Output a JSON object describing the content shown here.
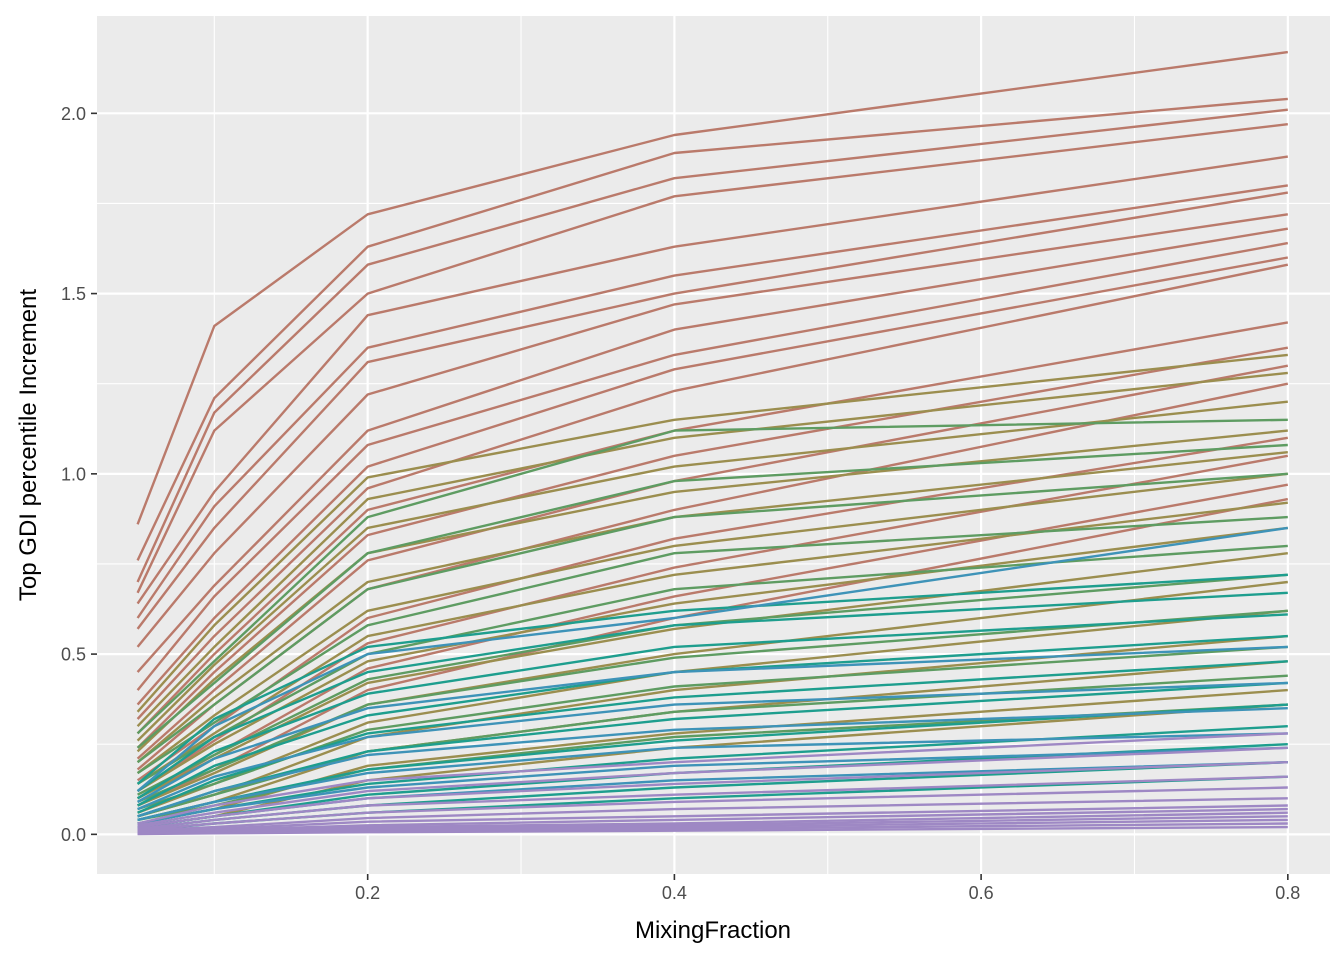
{
  "chart_data": {
    "type": "line",
    "title": "",
    "xlabel": "MixingFraction",
    "ylabel": "Top GDI percentile Increment",
    "xlim": [
      0.0235,
      0.8275
    ],
    "ylim": [
      -0.11,
      2.27
    ],
    "grid": true,
    "legend": "none",
    "x_ticks": [
      0.2,
      0.4,
      0.6,
      0.8
    ],
    "x_tick_labels": [
      "0.2",
      "0.4",
      "0.6",
      "0.8"
    ],
    "y_ticks": [
      0.0,
      0.5,
      1.0,
      1.5,
      2.0
    ],
    "y_tick_labels": [
      "0.0",
      "0.5",
      "1.0",
      "1.5",
      "2.0"
    ],
    "x": [
      0.05,
      0.1,
      0.2,
      0.4,
      0.8
    ],
    "groups": [
      {
        "color": "#BA7A6B",
        "lines": [
          {
            "values": [
              0.86,
              1.41,
              1.72,
              1.94,
              2.17
            ]
          },
          {
            "values": [
              0.76,
              1.21,
              1.63,
              1.89,
              2.04
            ]
          },
          {
            "values": [
              0.7,
              1.17,
              1.58,
              1.82,
              2.01
            ]
          },
          {
            "values": [
              0.67,
              1.12,
              1.5,
              1.77,
              1.97
            ]
          },
          {
            "values": [
              0.64,
              0.95,
              1.44,
              1.63,
              1.88
            ]
          },
          {
            "values": [
              0.6,
              0.91,
              1.35,
              1.55,
              1.8
            ]
          },
          {
            "values": [
              0.57,
              0.85,
              1.31,
              1.5,
              1.78
            ]
          },
          {
            "values": [
              0.52,
              0.78,
              1.22,
              1.47,
              1.72
            ]
          },
          {
            "values": [
              0.45,
              0.69,
              1.12,
              1.4,
              1.68
            ]
          },
          {
            "values": [
              0.4,
              0.66,
              1.08,
              1.33,
              1.64
            ]
          },
          {
            "values": [
              0.36,
              0.6,
              1.02,
              1.29,
              1.6
            ]
          },
          {
            "values": [
              0.32,
              0.55,
              0.96,
              1.23,
              1.58
            ]
          },
          {
            "values": [
              0.28,
              0.5,
              0.9,
              1.12,
              1.42
            ]
          },
          {
            "values": [
              0.24,
              0.45,
              0.83,
              1.05,
              1.35
            ]
          },
          {
            "values": [
              0.21,
              0.4,
              0.76,
              0.98,
              1.3
            ]
          },
          {
            "values": [
              0.18,
              0.36,
              0.68,
              0.9,
              1.25
            ]
          },
          {
            "values": [
              0.15,
              0.3,
              0.6,
              0.82,
              1.1
            ]
          },
          {
            "values": [
              0.12,
              0.26,
              0.53,
              0.74,
              1.05
            ]
          },
          {
            "values": [
              0.1,
              0.22,
              0.46,
              0.66,
              0.97
            ]
          },
          {
            "values": [
              0.08,
              0.18,
              0.4,
              0.6,
              0.93
            ]
          }
        ]
      },
      {
        "color": "#9B8E4F",
        "lines": [
          {
            "values": [
              0.34,
              0.58,
              0.99,
              1.15,
              1.33
            ]
          },
          {
            "values": [
              0.3,
              0.52,
              0.93,
              1.1,
              1.28
            ]
          },
          {
            "values": [
              0.26,
              0.47,
              0.85,
              1.02,
              1.2
            ]
          },
          {
            "values": [
              0.23,
              0.43,
              0.78,
              0.95,
              1.12
            ]
          },
          {
            "values": [
              0.2,
              0.38,
              0.7,
              0.88,
              1.06
            ]
          },
          {
            "values": [
              0.17,
              0.33,
              0.62,
              0.8,
              1.0
            ]
          },
          {
            "values": [
              0.14,
              0.28,
              0.55,
              0.72,
              0.92
            ]
          },
          {
            "values": [
              0.12,
              0.25,
              0.48,
              0.64,
              0.85
            ]
          },
          {
            "values": [
              0.1,
              0.21,
              0.42,
              0.57,
              0.78
            ]
          },
          {
            "values": [
              0.08,
              0.17,
              0.36,
              0.5,
              0.7
            ]
          },
          {
            "values": [
              0.06,
              0.14,
              0.31,
              0.45,
              0.62
            ]
          },
          {
            "values": [
              0.05,
              0.11,
              0.27,
              0.4,
              0.55
            ]
          },
          {
            "values": [
              0.04,
              0.09,
              0.23,
              0.34,
              0.48
            ]
          },
          {
            "values": [
              0.03,
              0.07,
              0.19,
              0.28,
              0.4
            ]
          },
          {
            "values": [
              0.02,
              0.05,
              0.15,
              0.24,
              0.36
            ]
          }
        ]
      },
      {
        "color": "#5E9C62",
        "lines": [
          {
            "values": [
              0.28,
              0.48,
              0.88,
              1.12,
              1.15
            ]
          },
          {
            "values": [
              0.24,
              0.42,
              0.78,
              0.98,
              1.08
            ]
          },
          {
            "values": [
              0.2,
              0.36,
              0.68,
              0.88,
              1.0
            ]
          },
          {
            "values": [
              0.17,
              0.31,
              0.58,
              0.78,
              0.88
            ]
          },
          {
            "values": [
              0.14,
              0.27,
              0.5,
              0.68,
              0.8
            ]
          },
          {
            "values": [
              0.11,
              0.22,
              0.43,
              0.58,
              0.72
            ]
          },
          {
            "values": [
              0.09,
              0.18,
              0.36,
              0.49,
              0.62
            ]
          },
          {
            "values": [
              0.07,
              0.14,
              0.29,
              0.41,
              0.52
            ]
          },
          {
            "values": [
              0.05,
              0.11,
              0.23,
              0.34,
              0.44
            ]
          },
          {
            "values": [
              0.04,
              0.08,
              0.18,
              0.27,
              0.36
            ]
          }
        ]
      },
      {
        "color": "#1E9E8E",
        "lines": [
          {
            "values": [
              0.14,
              0.32,
              0.52,
              0.62,
              0.72
            ]
          },
          {
            "values": [
              0.12,
              0.27,
              0.45,
              0.58,
              0.67
            ]
          },
          {
            "values": [
              0.1,
              0.23,
              0.39,
              0.52,
              0.61
            ]
          },
          {
            "values": [
              0.08,
              0.19,
              0.33,
              0.45,
              0.55
            ]
          },
          {
            "values": [
              0.06,
              0.15,
              0.28,
              0.38,
              0.48
            ]
          },
          {
            "values": [
              0.05,
              0.12,
              0.23,
              0.32,
              0.42
            ]
          },
          {
            "values": [
              0.04,
              0.09,
              0.18,
              0.26,
              0.36
            ]
          },
          {
            "values": [
              0.03,
              0.07,
              0.14,
              0.21,
              0.3
            ]
          },
          {
            "values": [
              0.02,
              0.05,
              0.11,
              0.17,
              0.25
            ]
          },
          {
            "values": [
              0.015,
              0.04,
              0.08,
              0.13,
              0.2
            ]
          },
          {
            "values": [
              0.01,
              0.03,
              0.06,
              0.1,
              0.16
            ]
          }
        ]
      },
      {
        "color": "#3E93B8",
        "lines": [
          {
            "values": [
              0.12,
              0.3,
              0.5,
              0.6,
              0.85
            ]
          },
          {
            "values": [
              0.09,
              0.21,
              0.35,
              0.45,
              0.52
            ]
          },
          {
            "values": [
              0.07,
              0.16,
              0.27,
              0.36,
              0.42
            ]
          },
          {
            "values": [
              0.05,
              0.12,
              0.22,
              0.29,
              0.35
            ]
          },
          {
            "values": [
              0.04,
              0.09,
              0.17,
              0.24,
              0.28
            ]
          },
          {
            "values": [
              0.03,
              0.07,
              0.13,
              0.19,
              0.24
            ]
          },
          {
            "values": [
              0.02,
              0.05,
              0.1,
              0.15,
              0.2
            ]
          }
        ]
      },
      {
        "color": "#9E88C4",
        "lines": [
          {
            "values": [
              0.03,
              0.08,
              0.15,
              0.2,
              0.28
            ]
          },
          {
            "values": [
              0.025,
              0.06,
              0.12,
              0.17,
              0.24
            ]
          },
          {
            "values": [
              0.02,
              0.05,
              0.1,
              0.14,
              0.2
            ]
          },
          {
            "values": [
              0.015,
              0.04,
              0.08,
              0.11,
              0.16
            ]
          },
          {
            "values": [
              0.012,
              0.03,
              0.06,
              0.09,
              0.13
            ]
          },
          {
            "values": [
              0.01,
              0.02,
              0.045,
              0.07,
              0.1
            ]
          },
          {
            "values": [
              0.008,
              0.015,
              0.035,
              0.05,
              0.08
            ]
          },
          {
            "values": [
              0.006,
              0.012,
              0.025,
              0.04,
              0.07
            ]
          },
          {
            "values": [
              0.005,
              0.01,
              0.02,
              0.03,
              0.06
            ]
          },
          {
            "values": [
              0.004,
              0.008,
              0.015,
              0.025,
              0.05
            ]
          },
          {
            "values": [
              0.003,
              0.006,
              0.012,
              0.02,
              0.04
            ]
          },
          {
            "values": [
              0.002,
              0.004,
              0.008,
              0.015,
              0.03
            ]
          },
          {
            "values": [
              0.001,
              0.003,
              0.006,
              0.01,
              0.02
            ]
          }
        ]
      }
    ]
  }
}
